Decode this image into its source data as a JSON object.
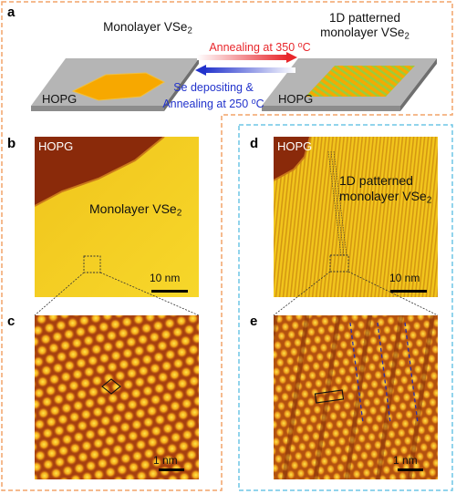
{
  "panels": {
    "a": "a",
    "b": "b",
    "c": "c",
    "d": "d",
    "e": "e"
  },
  "schematic": {
    "left_title": "Monolayer VSe",
    "left_title_sub": "2",
    "right_title_line1": "1D patterned",
    "right_title_line2": "monolayer VSe",
    "right_title_sub": "2",
    "left_substrate": "HOPG",
    "right_substrate": "HOPG",
    "forward_arrow": {
      "text": "Annealing at 350 ",
      "sup": "o",
      "unit": "C",
      "color": "#e8262b"
    },
    "reverse_arrow": {
      "line1": "Se depositing &",
      "line2_text": "Annealing at 250 ",
      "sup": "o",
      "unit": "C",
      "color": "#2233cc"
    }
  },
  "panel_b": {
    "substrate": "HOPG",
    "film_label": "Monolayer VSe",
    "film_label_sub": "2",
    "scalebar": "10 nm"
  },
  "panel_c": {
    "scalebar": "1 nm"
  },
  "panel_d": {
    "substrate": "HOPG",
    "film_label_line1": "1D patterned",
    "film_label_line2": "monolayer VSe",
    "film_label_sub": "2",
    "scalebar": "10 nm"
  },
  "panel_e": {
    "scalebar": "1 nm"
  },
  "colors": {
    "sample_orange": "#f7a800",
    "stripe_green": "#9ccc3a",
    "hopg_gray": "#b5b5b5",
    "stm_yellow": "#f5d21a",
    "stm_dark": "#8a2a0a",
    "left_box_border": "#f2a368",
    "right_box_border": "#6ec6e6"
  }
}
